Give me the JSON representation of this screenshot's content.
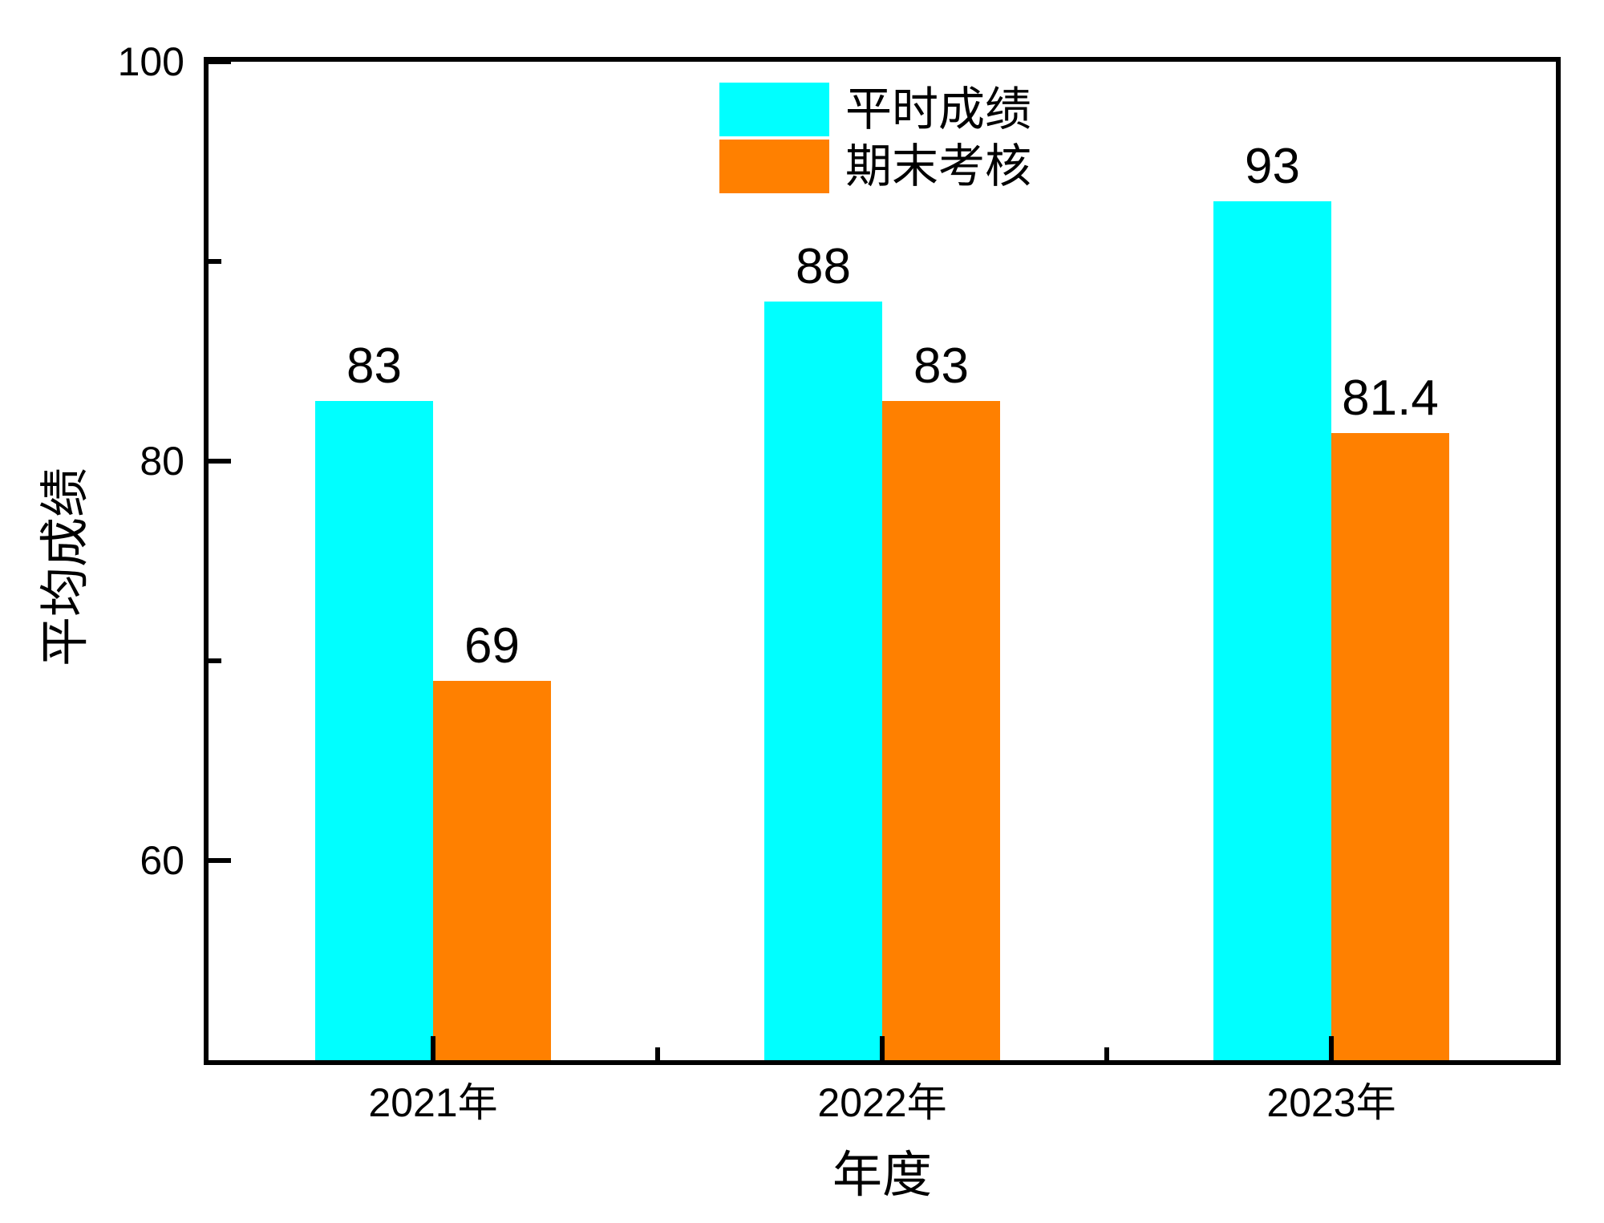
{
  "chart_data": {
    "type": "bar",
    "title": "",
    "xlabel": "年度",
    "ylabel": "平均成绩",
    "categories": [
      "2021年",
      "2022年",
      "2023年"
    ],
    "series": [
      {
        "name": "平时成绩",
        "color": "#00FFFF",
        "values": [
          83,
          88,
          93
        ],
        "value_labels": [
          "83",
          "88",
          "93"
        ]
      },
      {
        "name": "期末考核",
        "color": "#FF8000",
        "values": [
          69,
          83,
          81.4
        ],
        "value_labels": [
          "69",
          "83",
          "81.4"
        ]
      }
    ],
    "ylim": [
      50,
      100
    ],
    "yticks_major": [
      100,
      80,
      60
    ],
    "yticks_minor": [
      90,
      70
    ],
    "grid": false,
    "legend_position": "top-inside",
    "axis_color": "#000000",
    "background_color": "#FFFFFF",
    "text_color": "#000000"
  }
}
